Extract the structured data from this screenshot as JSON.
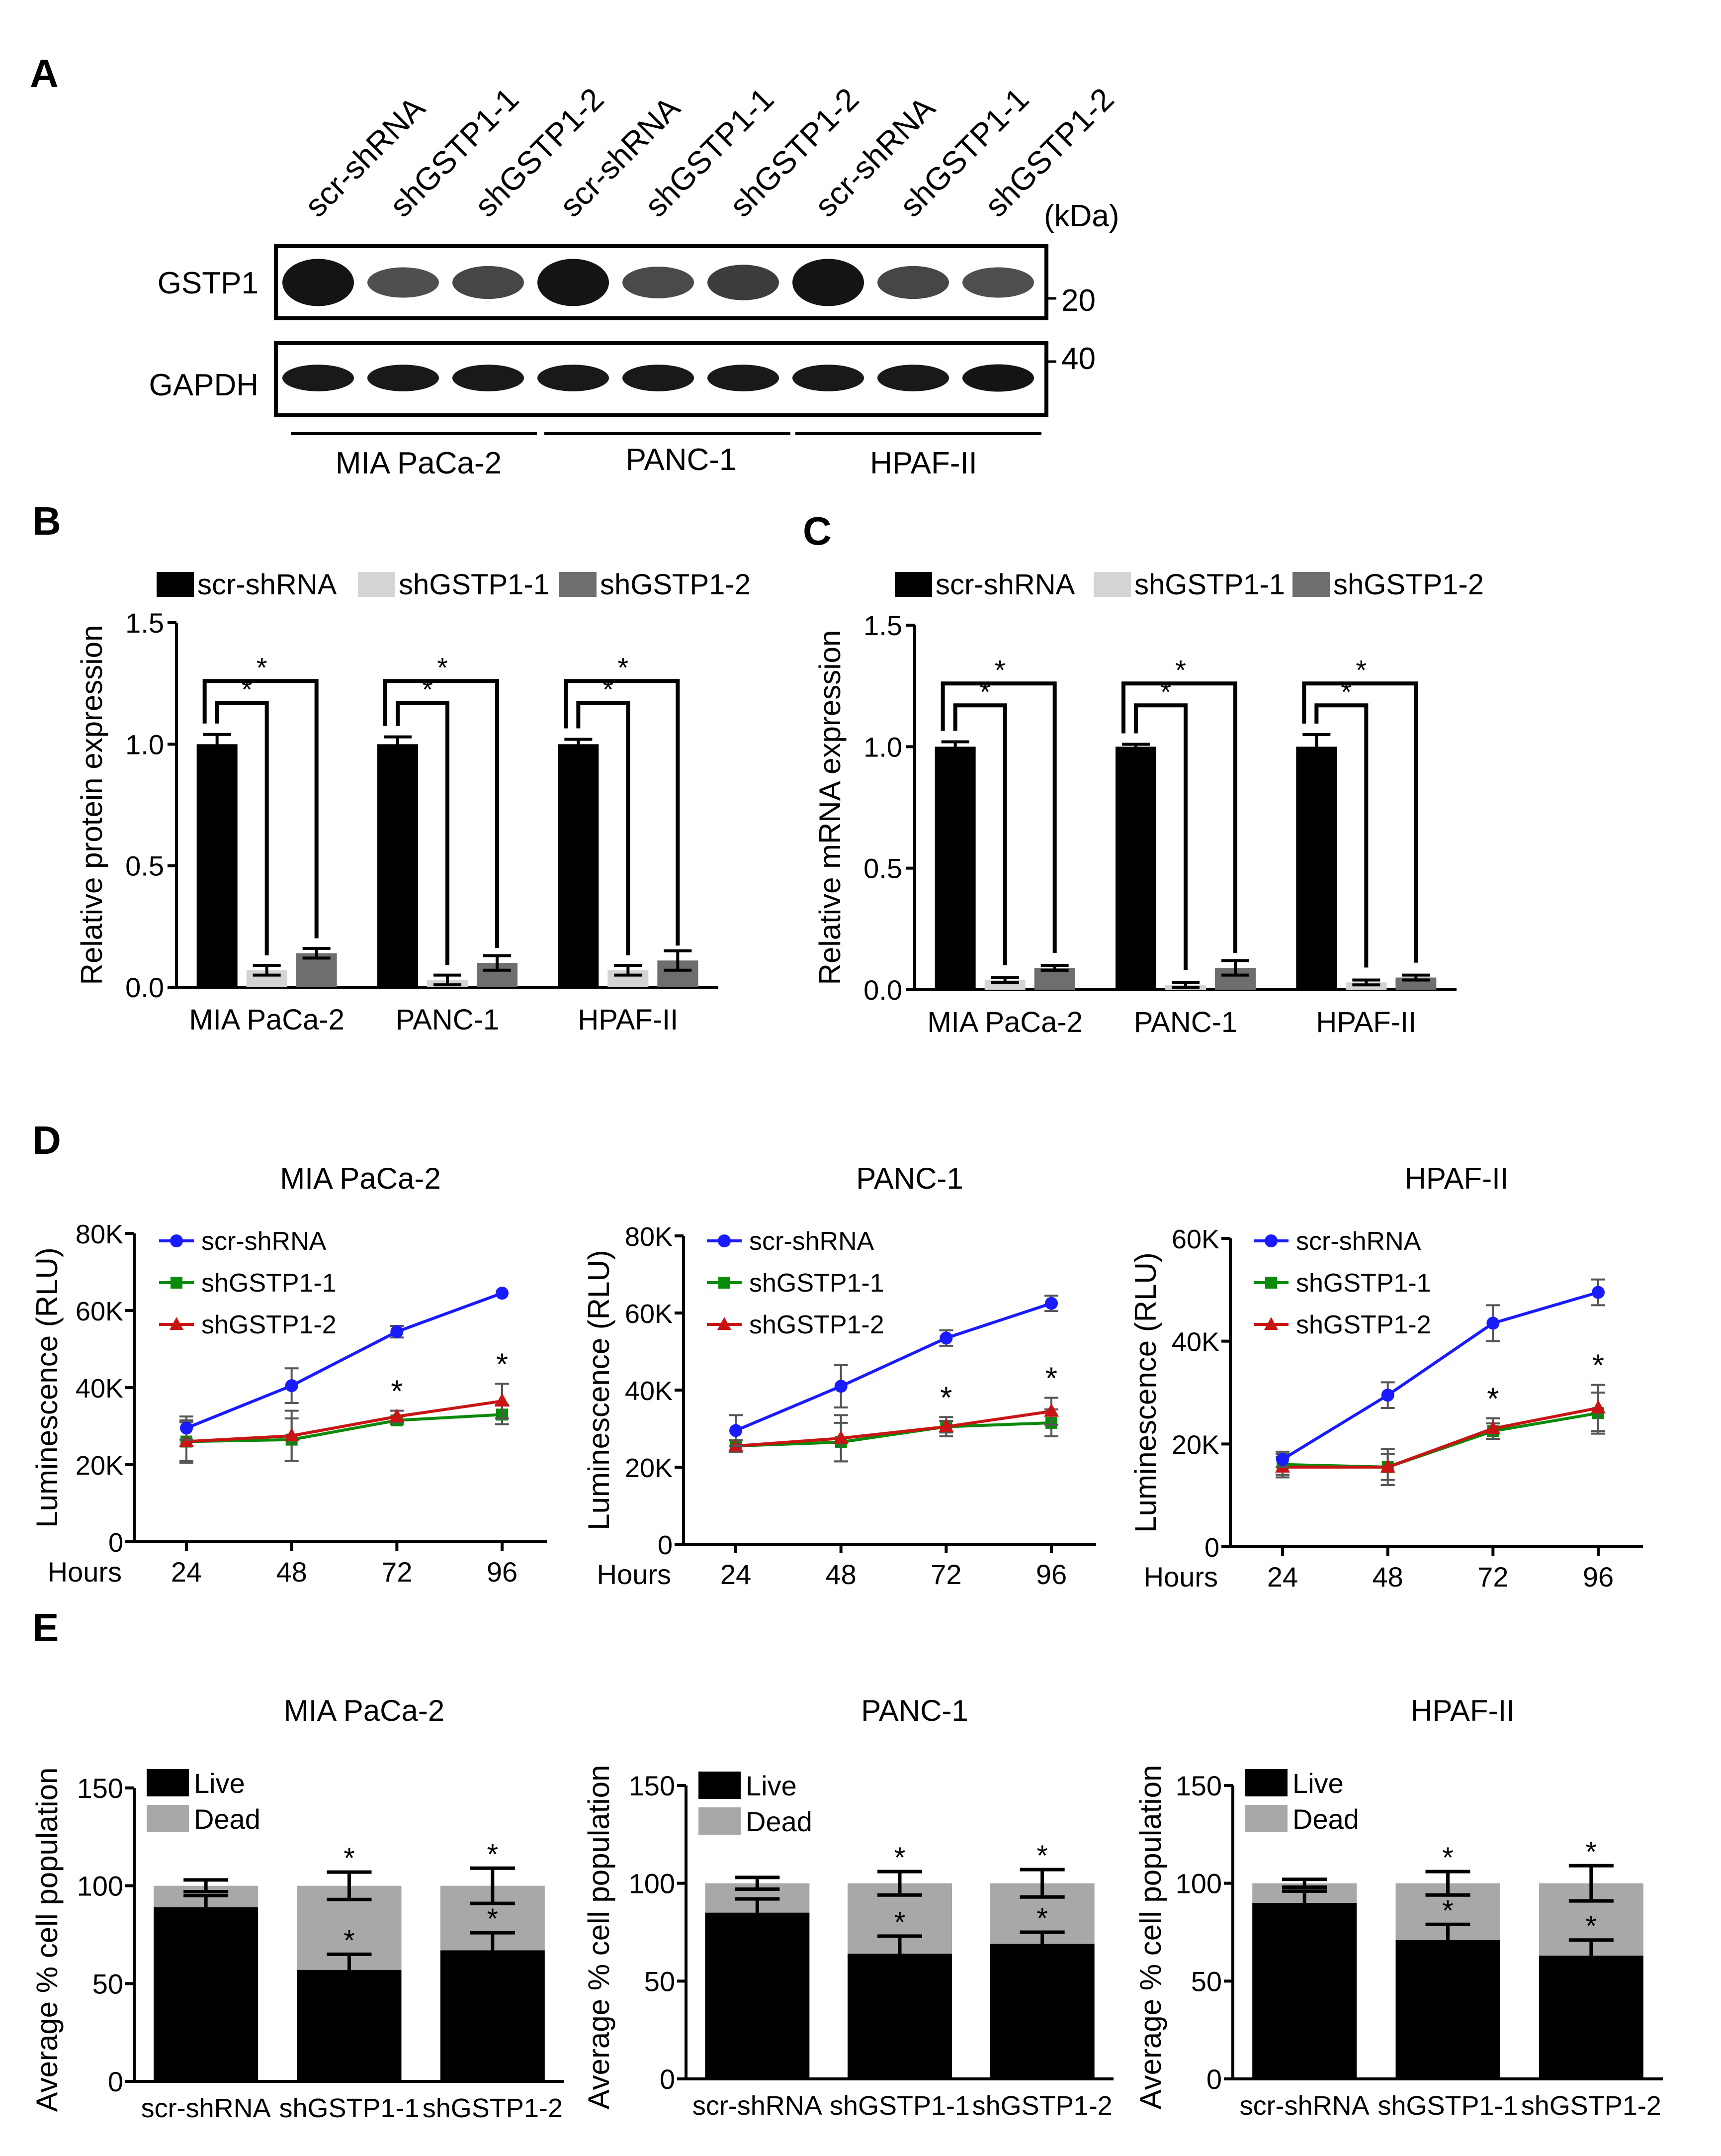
{
  "colors": {
    "black": "#000000",
    "light_gray": "#d4d4d4",
    "dark_gray": "#6e6e6e",
    "blue": "#1a1aff",
    "green": "#0a8a0a",
    "red": "#c81414",
    "dead_gray": "#a8a8a8"
  },
  "conditions": [
    "scr-shRNA",
    "shGSTP1-1",
    "shGSTP1-2"
  ],
  "cell_lines": [
    "MIA PaCa-2",
    "PANC-1",
    "HPAF-II"
  ],
  "panel_a": {
    "letter": "A",
    "lane_labels": [
      "scr-shRNA",
      "shGSTP1-1",
      "shGSTP1-2",
      "scr-shRNA",
      "shGSTP1-1",
      "shGSTP1-2",
      "scr-shRNA",
      "shGSTP1-1",
      "shGSTP1-2"
    ],
    "kda_label": "(kDa)",
    "blots": [
      {
        "name": "GSTP1",
        "marker": "20",
        "band_intensity": [
          1.0,
          0.35,
          0.45,
          1.0,
          0.4,
          0.55,
          1.0,
          0.45,
          0.35
        ]
      },
      {
        "name": "GAPDH",
        "marker": "40",
        "band_intensity": [
          0.95,
          0.95,
          0.95,
          0.95,
          0.95,
          0.95,
          0.95,
          0.95,
          1.0
        ]
      }
    ],
    "groups": [
      "MIA PaCa-2",
      "PANC-1",
      "HPAF-II"
    ]
  },
  "chart_data": [
    {
      "panel": "B",
      "type": "bar",
      "title": "",
      "ylabel": "Relative protein expression",
      "xlabel": "",
      "categories": [
        "MIA PaCa-2",
        "PANC-1",
        "HPAF-II"
      ],
      "ylim": [
        0,
        1.5
      ],
      "yticks": [
        "0.0",
        "0.5",
        "1.0",
        "1.5"
      ],
      "legend": [
        "scr-shRNA",
        "shGSTP1-1",
        "shGSTP1-2"
      ],
      "series": [
        {
          "name": "scr-shRNA",
          "values": [
            1.0,
            1.0,
            1.0
          ],
          "errors": [
            0.04,
            0.03,
            0.02
          ]
        },
        {
          "name": "shGSTP1-1",
          "values": [
            0.07,
            0.03,
            0.07
          ],
          "errors": [
            0.02,
            0.02,
            0.02
          ]
        },
        {
          "name": "shGSTP1-2",
          "values": [
            0.14,
            0.1,
            0.11
          ],
          "errors": [
            0.02,
            0.03,
            0.04
          ]
        }
      ],
      "significance": "*"
    },
    {
      "panel": "C",
      "type": "bar",
      "title": "",
      "ylabel": "Relative mRNA expression",
      "xlabel": "",
      "categories": [
        "MIA PaCa-2",
        "PANC-1",
        "HPAF-II"
      ],
      "ylim": [
        0,
        1.5
      ],
      "yticks": [
        "0.0",
        "0.5",
        "1.0",
        "1.5"
      ],
      "legend": [
        "scr-shRNA",
        "shGSTP1-1",
        "shGSTP1-2"
      ],
      "series": [
        {
          "name": "scr-shRNA",
          "values": [
            1.0,
            1.0,
            1.0
          ],
          "errors": [
            0.02,
            0.01,
            0.05
          ]
        },
        {
          "name": "shGSTP1-1",
          "values": [
            0.04,
            0.02,
            0.03
          ],
          "errors": [
            0.01,
            0.01,
            0.01
          ]
        },
        {
          "name": "shGSTP1-2",
          "values": [
            0.09,
            0.09,
            0.05
          ],
          "errors": [
            0.01,
            0.03,
            0.01
          ]
        }
      ],
      "significance": "*"
    },
    {
      "panel": "D",
      "type": "line",
      "title": "MIA PaCa-2",
      "ylabel": "Luminescence (RLU)",
      "xlabel": "Hours",
      "x": [
        24,
        48,
        72,
        96
      ],
      "ylim": [
        0,
        80000
      ],
      "yticks": [
        "0",
        "20K",
        "40K",
        "60K",
        "80K"
      ],
      "ytick_values": [
        0,
        20000,
        40000,
        60000,
        80000
      ],
      "series": [
        {
          "name": "scr-shRNA",
          "values": [
            29500,
            40500,
            54500,
            64500
          ],
          "errors": [
            3000,
            4500,
            1500,
            0
          ]
        },
        {
          "name": "shGSTP1-1",
          "values": [
            26000,
            26500,
            31500,
            33000
          ],
          "errors": [
            5000,
            5500,
            1000,
            2500
          ]
        },
        {
          "name": "shGSTP1-2",
          "values": [
            26000,
            27500,
            32500,
            36500
          ],
          "errors": [
            5500,
            6500,
            1500,
            4500
          ]
        }
      ],
      "stars": [
        72,
        96
      ]
    },
    {
      "panel": "D",
      "type": "line",
      "title": "PANC-1",
      "ylabel": "Luminescence (RLU)",
      "xlabel": "Hours",
      "x": [
        24,
        48,
        72,
        96
      ],
      "ylim": [
        0,
        80000
      ],
      "yticks": [
        "0",
        "20K",
        "40K",
        "60K",
        "80K"
      ],
      "ytick_values": [
        0,
        20000,
        40000,
        60000,
        80000
      ],
      "series": [
        {
          "name": "scr-shRNA",
          "values": [
            29500,
            41000,
            53500,
            62500
          ],
          "errors": [
            4000,
            5500,
            2000,
            2000
          ]
        },
        {
          "name": "shGSTP1-1",
          "values": [
            25500,
            26500,
            30500,
            31500
          ],
          "errors": [
            1500,
            5000,
            2500,
            3500
          ]
        },
        {
          "name": "shGSTP1-2",
          "values": [
            25500,
            27500,
            30500,
            34500
          ],
          "errors": [
            1500,
            6000,
            1500,
            3500
          ]
        }
      ],
      "stars": [
        72,
        96
      ]
    },
    {
      "panel": "D",
      "type": "line",
      "title": "HPAF-II",
      "ylabel": "Luminescence (RLU)",
      "xlabel": "Hours",
      "x": [
        24,
        48,
        72,
        96
      ],
      "ylim": [
        0,
        60000
      ],
      "yticks": [
        "0",
        "20K",
        "40K",
        "60K"
      ],
      "ytick_values": [
        0,
        20000,
        40000,
        60000
      ],
      "series": [
        {
          "name": "scr-shRNA",
          "values": [
            17000,
            29500,
            43500,
            49500
          ],
          "errors": [
            1500,
            2500,
            3500,
            2500
          ]
        },
        {
          "name": "shGSTP1-1",
          "values": [
            16000,
            15500,
            22500,
            26000
          ],
          "errors": [
            2000,
            2500,
            1500,
            4000
          ]
        },
        {
          "name": "shGSTP1-2",
          "values": [
            15500,
            15500,
            23000,
            27000
          ],
          "errors": [
            2000,
            3500,
            2000,
            4500
          ]
        }
      ],
      "stars": [
        72,
        96
      ]
    },
    {
      "panel": "E",
      "type": "bar",
      "title": "MIA PaCa-2",
      "ylabel": "Average % cell population",
      "xlabel": "",
      "categories": [
        "scr-shRNA",
        "shGSTP1-1",
        "shGSTP1-2"
      ],
      "ylim": [
        0,
        150
      ],
      "yticks": [
        "0",
        "50",
        "100",
        "150"
      ],
      "legend": [
        "Live",
        "Dead"
      ],
      "live": [
        89,
        57,
        67
      ],
      "live_err": [
        6,
        8,
        9
      ],
      "dead_err": [
        3,
        7,
        9
      ],
      "star_live": [
        false,
        true,
        true
      ],
      "star_dead": [
        false,
        true,
        true
      ]
    },
    {
      "panel": "E",
      "type": "bar",
      "title": "PANC-1",
      "ylabel": "Average % cell population",
      "xlabel": "",
      "categories": [
        "scr-shRNA",
        "shGSTP1-1",
        "shGSTP1-2"
      ],
      "ylim": [
        0,
        150
      ],
      "yticks": [
        "0",
        "50",
        "100",
        "150"
      ],
      "legend": [
        "Live",
        "Dead"
      ],
      "live": [
        85,
        64,
        69
      ],
      "live_err": [
        7,
        9,
        6
      ],
      "dead_err": [
        3,
        6,
        7
      ],
      "star_live": [
        false,
        true,
        true
      ],
      "star_dead": [
        false,
        true,
        true
      ]
    },
    {
      "panel": "E",
      "type": "bar",
      "title": "HPAF-II",
      "ylabel": "Average % cell population",
      "xlabel": "",
      "categories": [
        "scr-shRNA",
        "shGSTP1-1",
        "shGSTP1-2"
      ],
      "ylim": [
        0,
        150
      ],
      "yticks": [
        "0",
        "50",
        "100",
        "150"
      ],
      "legend": [
        "Live",
        "Dead"
      ],
      "live": [
        90,
        71,
        63
      ],
      "live_err": [
        6,
        8,
        8
      ],
      "dead_err": [
        2,
        6,
        9
      ],
      "star_live": [
        false,
        true,
        true
      ],
      "star_dead": [
        false,
        true,
        true
      ]
    }
  ],
  "panel_letters": {
    "b": "B",
    "c": "C",
    "d": "D",
    "e": "E"
  }
}
